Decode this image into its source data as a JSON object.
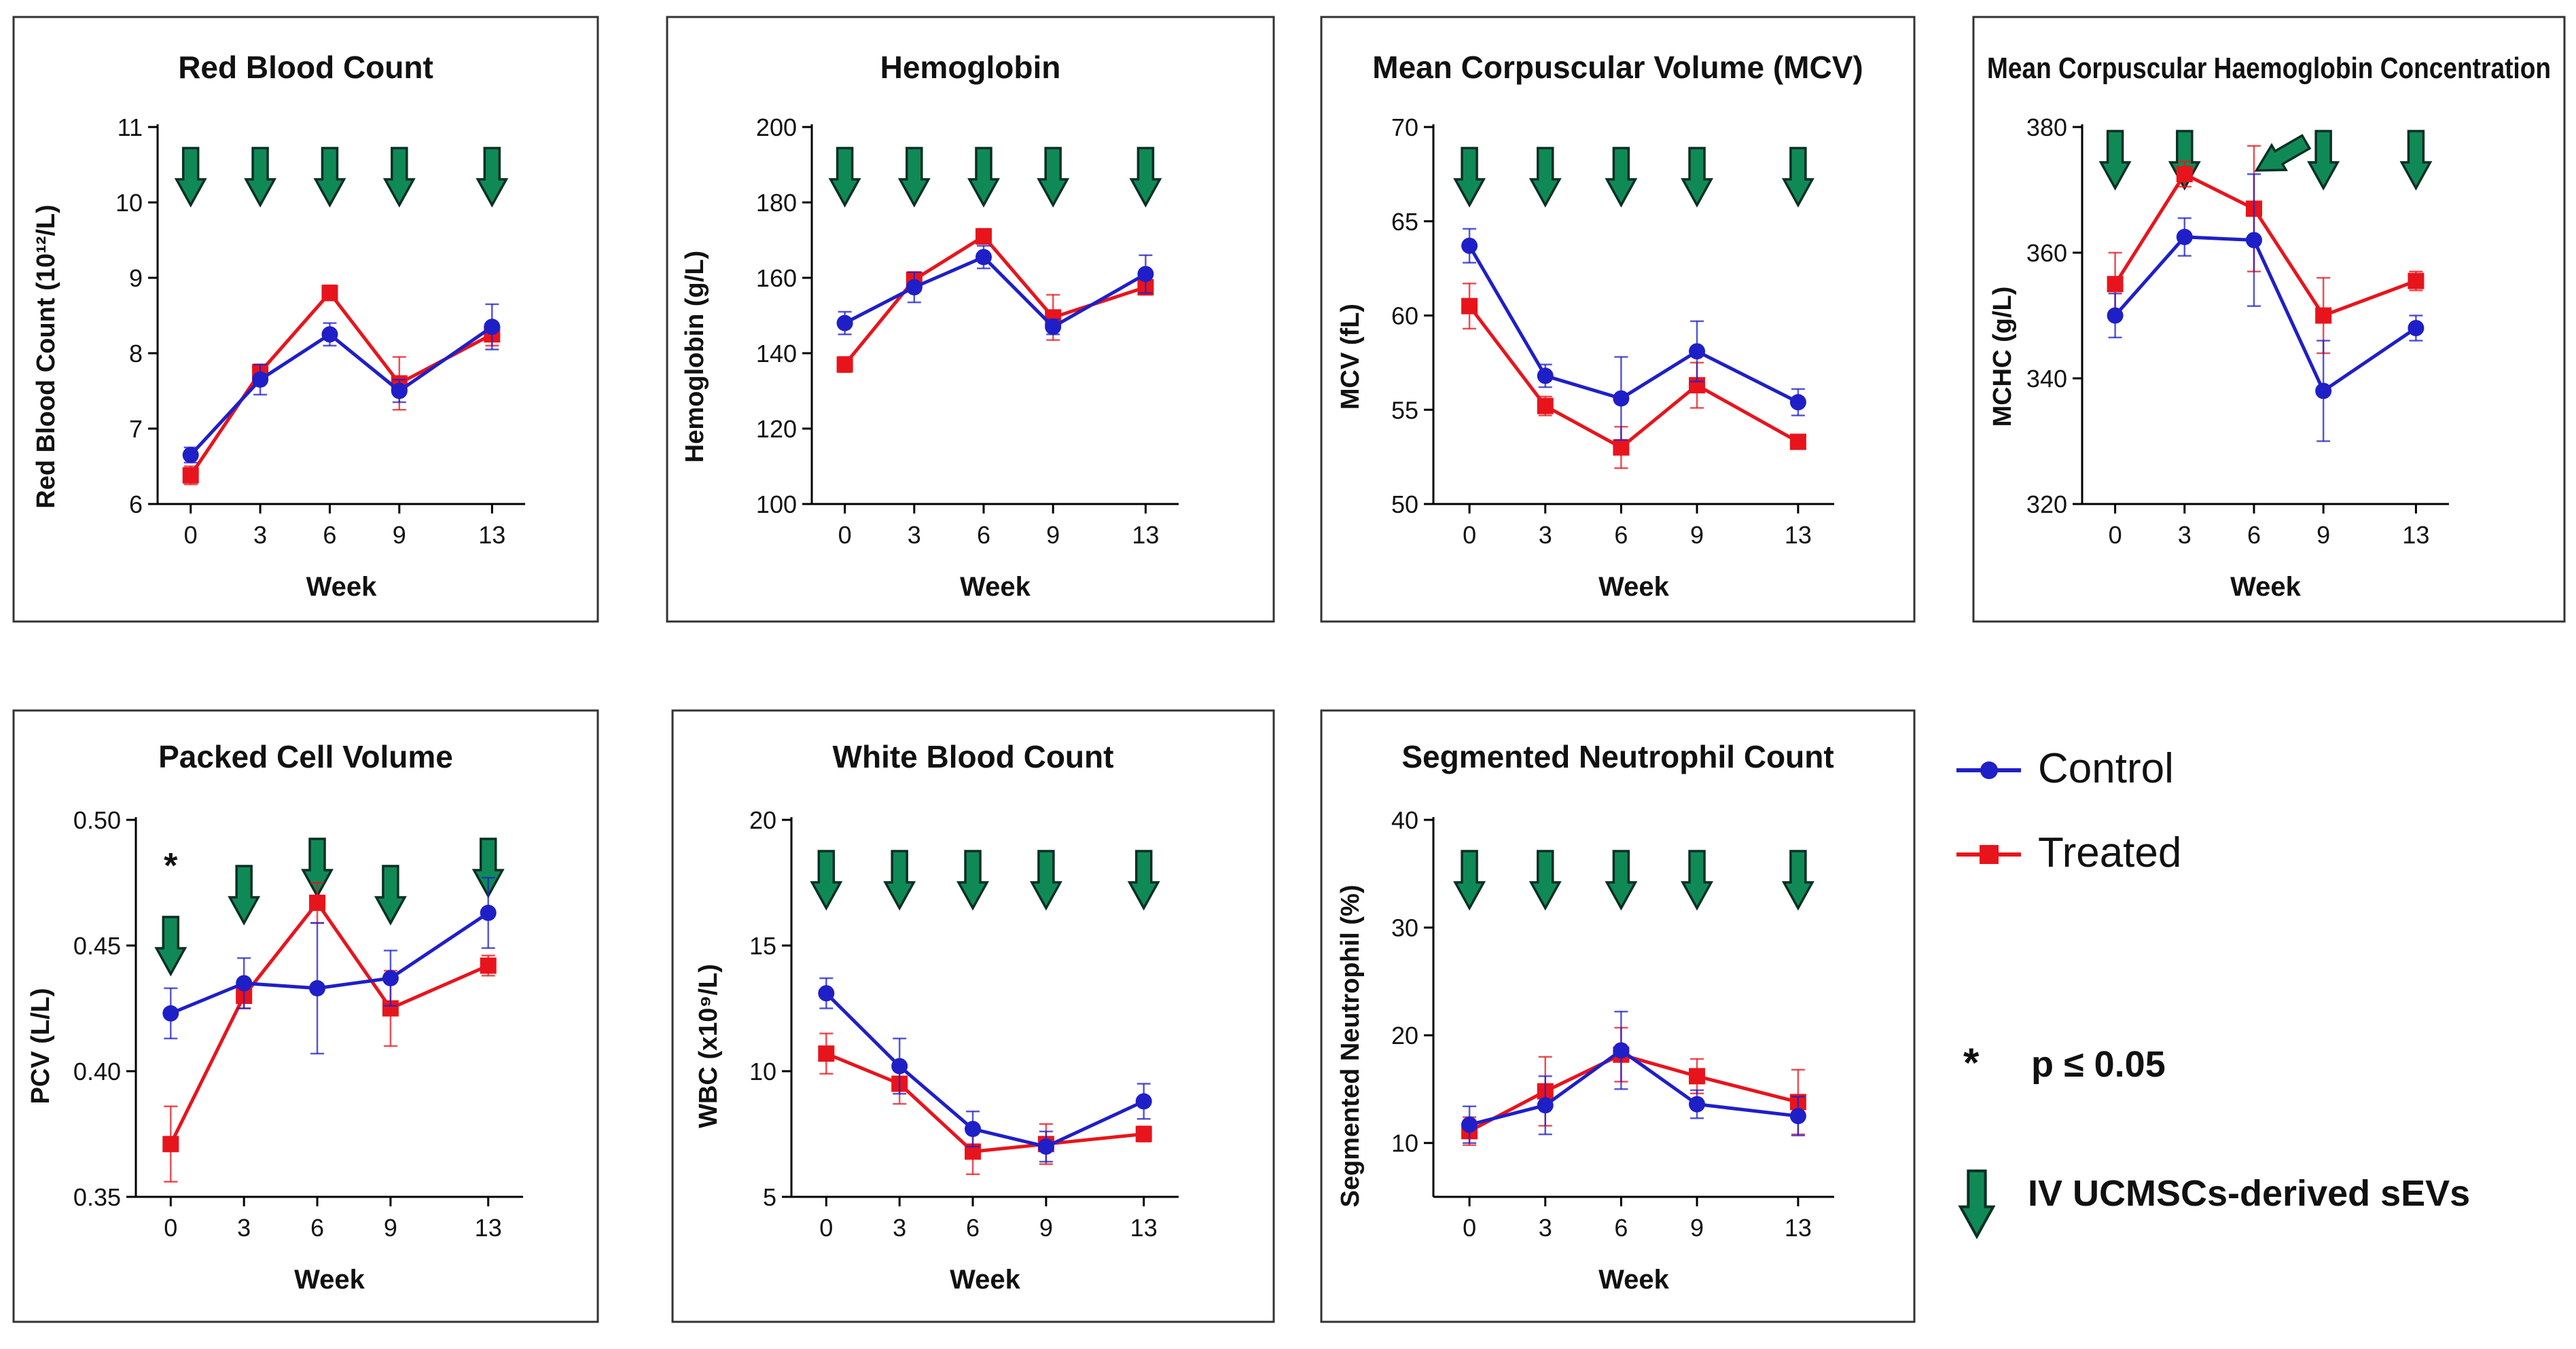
{
  "legend": {
    "control_label": "Control",
    "treated_label": "Treated",
    "significance_symbol": "*",
    "significance_label": "p ≤ 0.05",
    "arrow_label": "IV UCMSCs-derived sEVs",
    "arrow_icon": "down-arrow-icon"
  },
  "colors": {
    "control": "#1f1fc8",
    "treated": "#e8141c",
    "arrow_fill": "#0f8a57",
    "arrow_stroke": "#0b2f24",
    "frame": "#333333"
  },
  "chart_data": [
    {
      "id": "rbc",
      "type": "line",
      "title": "Red Blood Count",
      "xlabel": "Week",
      "ylabel": "Red Blood Count (10¹²/L)",
      "x": [
        0,
        3,
        6,
        9,
        13
      ],
      "categories": [
        "0",
        "3",
        "6",
        "9",
        "13"
      ],
      "ylim": [
        6,
        11
      ],
      "yticks": [
        6,
        7,
        8,
        9,
        10,
        11
      ],
      "series": [
        {
          "name": "Control",
          "values": [
            6.65,
            7.65,
            8.25,
            7.5,
            8.35
          ],
          "errors": [
            0.1,
            0.2,
            0.15,
            0.15,
            0.3
          ]
        },
        {
          "name": "Treated",
          "values": [
            6.38,
            7.75,
            8.8,
            7.6,
            8.25
          ],
          "errors": [
            0.12,
            0.1,
            0.1,
            0.35,
            0.15
          ]
        }
      ],
      "arrows_at": [
        0,
        3,
        6,
        9,
        13
      ],
      "significant_at": []
    },
    {
      "id": "hgb",
      "type": "line",
      "title": "Hemoglobin",
      "xlabel": "Week",
      "ylabel": "Hemoglobin (g/L)",
      "x": [
        0,
        3,
        6,
        9,
        13
      ],
      "categories": [
        "0",
        "3",
        "6",
        "9",
        "13"
      ],
      "ylim": [
        100,
        200
      ],
      "yticks": [
        100,
        120,
        140,
        160,
        180,
        200
      ],
      "series": [
        {
          "name": "Control",
          "values": [
            148,
            157.5,
            165.5,
            147,
            161
          ],
          "errors": [
            3,
            4,
            3,
            2,
            5
          ]
        },
        {
          "name": "Treated",
          "values": [
            137,
            159.5,
            171,
            149.5,
            157.5
          ],
          "errors": [
            2,
            2,
            2,
            6,
            2
          ]
        }
      ],
      "arrows_at": [
        0,
        3,
        6,
        9,
        13
      ],
      "significant_at": []
    },
    {
      "id": "mcv",
      "type": "line",
      "title": "Mean Corpuscular Volume (MCV)",
      "xlabel": "Week",
      "ylabel": "MCV (fL)",
      "x": [
        0,
        3,
        6,
        9,
        13
      ],
      "categories": [
        "0",
        "3",
        "6",
        "9",
        "13"
      ],
      "ylim": [
        50,
        70
      ],
      "yticks": [
        50,
        55,
        60,
        65,
        70
      ],
      "series": [
        {
          "name": "Control",
          "values": [
            63.7,
            56.8,
            55.6,
            58.1,
            55.4
          ],
          "errors": [
            0.9,
            0.6,
            2.2,
            1.6,
            0.7
          ]
        },
        {
          "name": "Treated",
          "values": [
            60.5,
            55.2,
            53.0,
            56.3,
            53.3
          ],
          "errors": [
            1.2,
            0.5,
            1.1,
            1.2,
            0.3
          ]
        }
      ],
      "arrows_at": [
        0,
        3,
        6,
        9,
        13
      ],
      "significant_at": []
    },
    {
      "id": "mchc",
      "type": "line",
      "title": "Mean Corpuscular Haemoglobin Concentration",
      "xlabel": "Week",
      "ylabel": "MCHC (g/L)",
      "x": [
        0,
        3,
        6,
        9,
        13
      ],
      "categories": [
        "0",
        "3",
        "6",
        "9",
        "13"
      ],
      "ylim": [
        320,
        380
      ],
      "yticks": [
        320,
        340,
        360,
        380
      ],
      "series": [
        {
          "name": "Control",
          "values": [
            350,
            362.5,
            362,
            338,
            348
          ],
          "errors": [
            3.5,
            3,
            10.5,
            8,
            2
          ]
        },
        {
          "name": "Treated",
          "values": [
            355,
            372.5,
            367,
            350,
            355.5
          ],
          "errors": [
            5,
            2,
            10,
            6,
            1.5
          ]
        }
      ],
      "arrows_at": [
        0,
        3,
        6,
        9,
        13
      ],
      "significant_at": []
    },
    {
      "id": "pcv",
      "type": "line",
      "title": "Packed Cell Volume",
      "xlabel": "Week",
      "ylabel": "PCV (L/L)",
      "x": [
        0,
        3,
        6,
        9,
        13
      ],
      "categories": [
        "0",
        "3",
        "6",
        "9",
        "13"
      ],
      "ylim": [
        0.35,
        0.5
      ],
      "yticks": [
        0.35,
        0.4,
        0.45,
        0.5
      ],
      "series": [
        {
          "name": "Control",
          "values": [
            0.423,
            0.435,
            0.433,
            0.437,
            0.463
          ],
          "errors": [
            0.01,
            0.01,
            0.026,
            0.011,
            0.014
          ]
        },
        {
          "name": "Treated",
          "values": [
            0.371,
            0.43,
            0.467,
            0.425,
            0.442
          ],
          "errors": [
            0.015,
            0.005,
            0.008,
            0.015,
            0.004
          ]
        }
      ],
      "arrows_at": [
        0,
        3,
        6,
        9,
        13
      ],
      "significant_at": [
        0
      ]
    },
    {
      "id": "wbc",
      "type": "line",
      "title": "White Blood Count",
      "xlabel": "Week",
      "ylabel": "WBC (x10⁹/L)",
      "x": [
        0,
        3,
        6,
        9,
        13
      ],
      "categories": [
        "0",
        "3",
        "6",
        "9",
        "13"
      ],
      "ylim": [
        5,
        20
      ],
      "yticks": [
        5,
        10,
        15,
        20
      ],
      "series": [
        {
          "name": "Control",
          "values": [
            13.1,
            10.2,
            7.7,
            7.0,
            8.8
          ],
          "errors": [
            0.6,
            1.1,
            0.7,
            0.6,
            0.7
          ]
        },
        {
          "name": "Treated",
          "values": [
            10.7,
            9.5,
            6.8,
            7.1,
            7.5
          ],
          "errors": [
            0.8,
            0.8,
            0.9,
            0.8,
            0.3
          ]
        }
      ],
      "arrows_at": [
        0,
        3,
        6,
        9,
        13
      ],
      "significant_at": []
    },
    {
      "id": "neu",
      "type": "line",
      "title": "Segmented Neutrophil Count",
      "xlabel": "Week",
      "ylabel": "Segmented Neutrophil (%)",
      "x": [
        0,
        3,
        6,
        9,
        13
      ],
      "categories": [
        "0",
        "3",
        "6",
        "9",
        "13"
      ],
      "ylim": [
        5,
        40
      ],
      "yticks": [
        10,
        20,
        30,
        40
      ],
      "series": [
        {
          "name": "Control",
          "values": [
            11.7,
            13.5,
            18.6,
            13.6,
            12.5
          ],
          "errors": [
            1.7,
            2.7,
            3.6,
            1.3,
            1.8
          ]
        },
        {
          "name": "Treated",
          "values": [
            11.1,
            14.8,
            18.2,
            16.2,
            13.8
          ],
          "errors": [
            1.3,
            3.2,
            2.5,
            1.6,
            3.0
          ]
        }
      ],
      "arrows_at": [
        0,
        3,
        6,
        9,
        13
      ],
      "significant_at": []
    }
  ]
}
